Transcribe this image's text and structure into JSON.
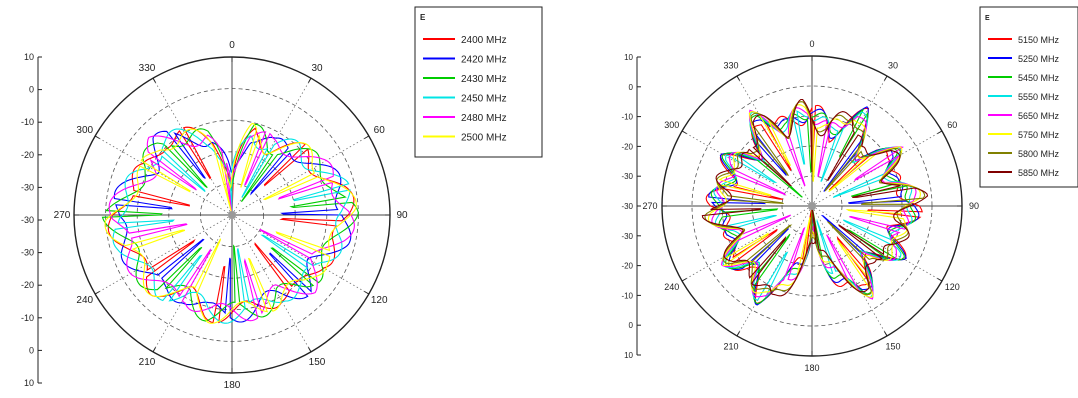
{
  "chart_data": [
    {
      "type": "polar-line",
      "title": "",
      "angle_ticks": [
        "0",
        "30",
        "60",
        "90",
        "120",
        "150",
        "180",
        "210",
        "240",
        "270",
        "300",
        "330"
      ],
      "radial_ticks_upper": [
        "10",
        "0",
        "-10",
        "-20",
        "-30",
        "-30"
      ],
      "radial_ticks_lower": [
        "-30",
        "-20",
        "-10",
        "0",
        "10"
      ],
      "rlim": [
        -40,
        10
      ],
      "grid": true,
      "legend": {
        "title": "E",
        "placement": "top-right"
      },
      "series": [
        {
          "name": "2400 MHz",
          "color": "#ff0000",
          "offset": 0
        },
        {
          "name": "2420 MHz",
          "color": "#0000ff",
          "offset": 2
        },
        {
          "name": "2430 MHz",
          "color": "#00cc00",
          "offset": 4
        },
        {
          "name": "2450 MHz",
          "color": "#00e5e5",
          "offset": 6
        },
        {
          "name": "2480 MHz",
          "color": "#ff00ff",
          "offset": 8
        },
        {
          "name": "2500 MHz",
          "color": "#ffff00",
          "offset": 10
        }
      ],
      "base_profile_angles": [
        0,
        15,
        30,
        45,
        60,
        75,
        90,
        105,
        120,
        135,
        150,
        165,
        180,
        195,
        210,
        225,
        240,
        255,
        270,
        285,
        300,
        315,
        330,
        345
      ],
      "base_profile_db": [
        -28,
        -12,
        -14,
        -10,
        -8,
        -4,
        -2,
        -4,
        -8,
        -6,
        -10,
        -8,
        -8,
        -7,
        -10,
        -6,
        -5,
        -4,
        -1,
        -5,
        -9,
        -6,
        -10,
        -14
      ]
    },
    {
      "type": "polar-line",
      "title": "",
      "angle_ticks": [
        "0",
        "30",
        "60",
        "90",
        "120",
        "150",
        "180",
        "210",
        "240",
        "270",
        "300",
        "330"
      ],
      "radial_ticks_upper": [
        "10",
        "0",
        "-10",
        "-20",
        "-30",
        "-30"
      ],
      "radial_ticks_lower": [
        "-30",
        "-20",
        "-10",
        "0",
        "10"
      ],
      "rlim": [
        -40,
        10
      ],
      "grid": true,
      "legend": {
        "title": "E",
        "placement": "top-right"
      },
      "series": [
        {
          "name": "5150 MHz",
          "color": "#ff0000",
          "offset": 0
        },
        {
          "name": "5250 MHz",
          "color": "#0000ff",
          "offset": 3
        },
        {
          "name": "5450 MHz",
          "color": "#00cc00",
          "offset": 6
        },
        {
          "name": "5550 MHz",
          "color": "#00e5e5",
          "offset": 9
        },
        {
          "name": "5650 MHz",
          "color": "#ff00ff",
          "offset": 12
        },
        {
          "name": "5750 MHz",
          "color": "#ffff00",
          "offset": 15
        },
        {
          "name": "5800 MHz",
          "color": "#808000",
          "offset": 18
        },
        {
          "name": "5850 MHz",
          "color": "#800000",
          "offset": 21
        }
      ],
      "base_profile_angles": [
        0,
        15,
        30,
        45,
        60,
        75,
        90,
        105,
        120,
        135,
        150,
        165,
        180,
        195,
        210,
        225,
        240,
        255,
        270,
        285,
        300,
        315,
        330,
        345
      ],
      "base_profile_db": [
        -6,
        -14,
        -4,
        -16,
        -6,
        -12,
        -3,
        -10,
        -6,
        -14,
        -5,
        -16,
        -30,
        -18,
        -4,
        -10,
        -6,
        -12,
        -5,
        -10,
        -7,
        -14,
        -4,
        -12
      ]
    }
  ]
}
